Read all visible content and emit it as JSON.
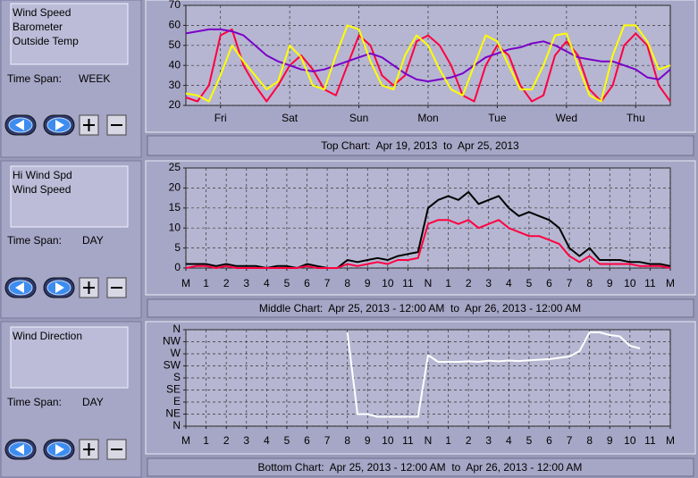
{
  "panels": [
    {
      "items": [
        "Wind Speed",
        "Barometer",
        "Outside Temp"
      ],
      "time_span_label": "Time Span:",
      "time_span": "WEEK",
      "caption": "Top Chart:  Apr 19, 2013  to  Apr 25, 2013"
    },
    {
      "items": [
        "Hi Wind Spd",
        "Wind Speed"
      ],
      "time_span_label": "Time Span:",
      "time_span": "DAY",
      "caption": "Middle Chart:  Apr 25, 2013 - 12:00 AM  to  Apr 26, 2013 - 12:00 AM"
    },
    {
      "items": [
        "Wind Direction"
      ],
      "time_span_label": "Time Span:",
      "time_span": "DAY",
      "caption": "Bottom Chart:  Apr 25, 2013 - 12:00 AM  to  Apr 26, 2013 - 12:00 AM"
    }
  ],
  "chart_data": [
    {
      "type": "line",
      "grid": true,
      "xlim": [
        0,
        168
      ],
      "xticks": [
        {
          "value": 12,
          "label": "Fri"
        },
        {
          "value": 36,
          "label": "Sat"
        },
        {
          "value": 60,
          "label": "Sun"
        },
        {
          "value": 84,
          "label": "Mon"
        },
        {
          "value": 108,
          "label": "Tue"
        },
        {
          "value": 132,
          "label": "Wed"
        },
        {
          "value": 156,
          "label": "Thu"
        }
      ],
      "ylim": [
        20,
        70
      ],
      "yticks": [
        20,
        30,
        40,
        50,
        60,
        70
      ],
      "x": [
        0,
        4,
        8,
        12,
        16,
        20,
        24,
        28,
        32,
        36,
        40,
        44,
        48,
        52,
        56,
        60,
        64,
        68,
        72,
        76,
        80,
        84,
        88,
        92,
        96,
        100,
        104,
        108,
        112,
        116,
        120,
        124,
        128,
        132,
        136,
        140,
        144,
        148,
        152,
        156,
        160,
        164,
        168
      ],
      "series": [
        {
          "name": "Wind Speed",
          "color": "#ff0040",
          "values": [
            24,
            22,
            30,
            55,
            58,
            40,
            30,
            22,
            30,
            40,
            45,
            38,
            28,
            25,
            40,
            55,
            50,
            35,
            30,
            35,
            52,
            55,
            50,
            40,
            25,
            22,
            40,
            50,
            45,
            30,
            22,
            25,
            45,
            52,
            45,
            28,
            22,
            30,
            50,
            56,
            50,
            30,
            22
          ]
        },
        {
          "name": "Barometer",
          "color": "#7a00c8",
          "values": [
            56,
            57,
            58,
            58,
            57,
            55,
            50,
            45,
            42,
            40,
            38,
            37,
            38,
            40,
            42,
            44,
            46,
            44,
            40,
            36,
            33,
            32,
            33,
            34,
            36,
            40,
            44,
            46,
            48,
            49,
            51,
            52,
            50,
            47,
            44,
            43,
            42,
            42,
            40,
            38,
            34,
            33,
            38
          ]
        },
        {
          "name": "Outside Temp",
          "color": "#ffff00",
          "values": [
            26,
            25,
            22,
            35,
            50,
            42,
            35,
            28,
            32,
            50,
            44,
            30,
            28,
            45,
            60,
            58,
            42,
            30,
            28,
            45,
            55,
            50,
            38,
            28,
            25,
            40,
            55,
            52,
            40,
            28,
            28,
            40,
            55,
            56,
            40,
            25,
            22,
            45,
            60,
            60,
            52,
            38,
            40
          ]
        }
      ]
    },
    {
      "type": "line",
      "grid": true,
      "xlim": [
        0,
        24
      ],
      "xticks": [
        {
          "value": 0,
          "label": "M"
        },
        1,
        2,
        3,
        4,
        5,
        6,
        7,
        8,
        9,
        10,
        11,
        {
          "value": 12,
          "label": "N"
        },
        {
          "value": 13,
          "label": "1"
        },
        {
          "value": 14,
          "label": "2"
        },
        {
          "value": 15,
          "label": "3"
        },
        {
          "value": 16,
          "label": "4"
        },
        {
          "value": 17,
          "label": "5"
        },
        {
          "value": 18,
          "label": "6"
        },
        {
          "value": 19,
          "label": "7"
        },
        {
          "value": 20,
          "label": "8"
        },
        {
          "value": 21,
          "label": "9"
        },
        {
          "value": 22,
          "label": "10"
        },
        {
          "value": 23,
          "label": "11"
        },
        {
          "value": 24,
          "label": "M"
        }
      ],
      "ylim": [
        0,
        25
      ],
      "yticks": [
        0,
        5,
        10,
        15,
        20,
        25
      ],
      "x": [
        0,
        0.5,
        1,
        1.5,
        2,
        2.5,
        3,
        3.5,
        4,
        4.5,
        5,
        5.5,
        6,
        6.5,
        7,
        7.5,
        8,
        8.5,
        9,
        9.5,
        10,
        10.5,
        11,
        11.5,
        12,
        12.5,
        13,
        13.5,
        14,
        14.5,
        15,
        15.5,
        16,
        16.5,
        17,
        17.5,
        18,
        18.5,
        19,
        19.5,
        20,
        20.5,
        21,
        21.5,
        22,
        22.5,
        23,
        23.5,
        24
      ],
      "series": [
        {
          "name": "Hi Wind Spd",
          "color": "#000000",
          "values": [
            1,
            1,
            1,
            0.5,
            1,
            0.5,
            0.5,
            0.5,
            0,
            0.5,
            0.5,
            0,
            1,
            0.5,
            0,
            0,
            2,
            1.5,
            2,
            2.5,
            2,
            3,
            3.5,
            4,
            15,
            17,
            18,
            17,
            19,
            16,
            17,
            18,
            15,
            13,
            14,
            13,
            12,
            10,
            5,
            3,
            5,
            2,
            2,
            2,
            1.5,
            1.5,
            1,
            1,
            0.5
          ]
        },
        {
          "name": "Wind Speed",
          "color": "#ff0040",
          "values": [
            0,
            0.5,
            0.5,
            0,
            0.5,
            0,
            0,
            0,
            0,
            0,
            0,
            0,
            0.5,
            0,
            0,
            0,
            1,
            0.5,
            1,
            1.5,
            1,
            2,
            2,
            2.5,
            11,
            12,
            12,
            11,
            12,
            10,
            11,
            12,
            10,
            9,
            8,
            8,
            7,
            6,
            3,
            1.5,
            3,
            1,
            1,
            1,
            1,
            0.5,
            0.5,
            0.5,
            0
          ]
        }
      ]
    },
    {
      "type": "line",
      "grid": true,
      "xlim": [
        0,
        24
      ],
      "xticks": [
        {
          "value": 0,
          "label": "M"
        },
        1,
        2,
        3,
        4,
        5,
        6,
        7,
        8,
        9,
        10,
        11,
        {
          "value": 12,
          "label": "N"
        },
        {
          "value": 13,
          "label": "1"
        },
        {
          "value": 14,
          "label": "2"
        },
        {
          "value": 15,
          "label": "3"
        },
        {
          "value": 16,
          "label": "4"
        },
        {
          "value": 17,
          "label": "5"
        },
        {
          "value": 18,
          "label": "6"
        },
        {
          "value": 19,
          "label": "7"
        },
        {
          "value": 20,
          "label": "8"
        },
        {
          "value": 21,
          "label": "9"
        },
        {
          "value": 22,
          "label": "10"
        },
        {
          "value": 23,
          "label": "11"
        },
        {
          "value": 24,
          "label": "M"
        }
      ],
      "ylim": [
        0,
        360
      ],
      "yticks": [
        {
          "value": 360,
          "label": "N"
        },
        {
          "value": 315,
          "label": "NW"
        },
        {
          "value": 270,
          "label": "W"
        },
        {
          "value": 225,
          "label": "SW"
        },
        {
          "value": 180,
          "label": "S"
        },
        {
          "value": 135,
          "label": "SE"
        },
        {
          "value": 90,
          "label": "E"
        },
        {
          "value": 45,
          "label": "NE"
        },
        {
          "value": 0,
          "label": "N"
        }
      ],
      "x": [
        0,
        0.5,
        1,
        1.5,
        2,
        2.5,
        3,
        3.5,
        4,
        4.5,
        5,
        5.5,
        6,
        6.5,
        7,
        7.5,
        8,
        8.5,
        9,
        9.5,
        10,
        10.5,
        11,
        11.5,
        12,
        12.5,
        13,
        13.5,
        14,
        14.5,
        15,
        15.5,
        16,
        16.5,
        17,
        17.5,
        18,
        18.5,
        19,
        19.5,
        20,
        20.5,
        21,
        21.5,
        22,
        22.5,
        23,
        23.5,
        24
      ],
      "series": [
        {
          "name": "Wind Direction",
          "color": "#ffffff",
          "values": [
            null,
            null,
            null,
            null,
            null,
            null,
            null,
            null,
            null,
            null,
            null,
            null,
            null,
            null,
            null,
            null,
            350,
            45,
            45,
            35,
            35,
            35,
            35,
            35,
            265,
            240,
            240,
            240,
            242,
            240,
            244,
            242,
            245,
            243,
            246,
            248,
            250,
            255,
            260,
            280,
            350,
            350,
            340,
            335,
            300,
            290,
            null,
            null,
            null
          ]
        }
      ]
    }
  ]
}
